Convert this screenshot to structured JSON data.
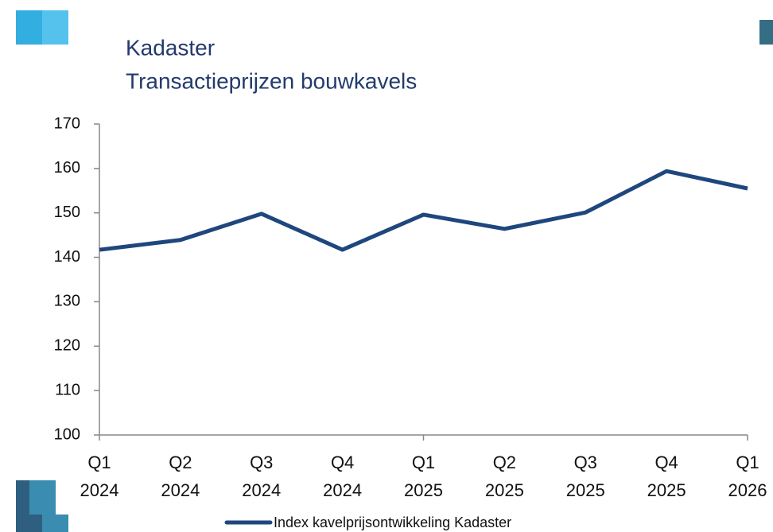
{
  "chart_data": {
    "type": "line",
    "title": "Kadaster",
    "subtitle": "Transactieprijzen bouwkavels",
    "categories": [
      [
        "Q1",
        "2024"
      ],
      [
        "Q2",
        "2024"
      ],
      [
        "Q3",
        "2024"
      ],
      [
        "Q4",
        "2024"
      ],
      [
        "Q1",
        "2025"
      ],
      [
        "Q2",
        "2025"
      ],
      [
        "Q3",
        "2025"
      ],
      [
        "Q4",
        "2025"
      ],
      [
        "Q1",
        "2026"
      ]
    ],
    "series": [
      {
        "name": "Index kavelprijsontwikkeling Kadaster",
        "color": "#1f477d",
        "values": [
          141.7,
          143.9,
          149.8,
          141.7,
          149.6,
          146.4,
          150.1,
          159.4,
          155.5
        ]
      }
    ],
    "ylim": [
      100,
      170
    ],
    "yticks": [
      100,
      110,
      120,
      130,
      140,
      150,
      160,
      170
    ],
    "grid": false,
    "legend": "bottom"
  }
}
